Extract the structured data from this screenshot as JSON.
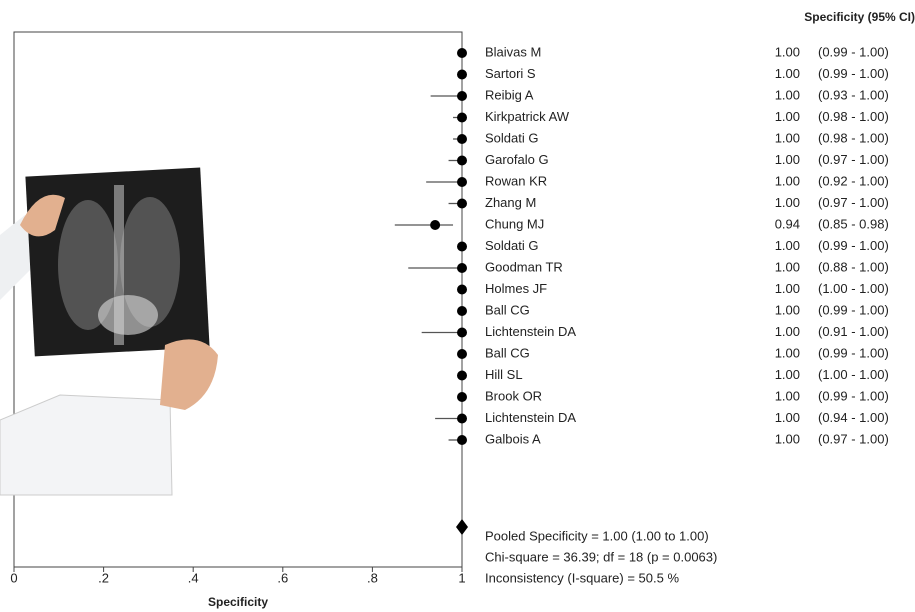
{
  "chart_data": {
    "type": "forest",
    "header": "Specificity (95% CI)",
    "xlabel": "Specificity",
    "color": "#000000",
    "studies": [
      "Blaivas M",
      "Sartori S",
      "Reibig A",
      "Kirkpatrick AW",
      "Soldati G",
      "Garofalo G",
      "Rowan KR",
      "Zhang M",
      "Chung MJ",
      "Soldati G",
      "Goodman TR",
      "Holmes JF",
      "Ball CG",
      "Lichtenstein DA",
      "Ball CG",
      "Hill SL",
      "Brook OR",
      "Lichtenstein DA",
      "Galbois A"
    ],
    "values": [
      1,
      1,
      1,
      1,
      1,
      1,
      1,
      1,
      0.94,
      1,
      1,
      1,
      1,
      1,
      1,
      1,
      1,
      1,
      1
    ],
    "value_labels": [
      "1.00",
      "1.00",
      "1.00",
      "1.00",
      "1.00",
      "1.00",
      "1.00",
      "1.00",
      "0.94",
      "1.00",
      "1.00",
      "1.00",
      "1.00",
      "1.00",
      "1.00",
      "1.00",
      "1.00",
      "1.00",
      "1.00"
    ],
    "ci_lower": [
      0.99,
      0.99,
      0.93,
      0.98,
      0.98,
      0.97,
      0.92,
      0.97,
      0.85,
      0.99,
      0.88,
      1,
      0.99,
      0.91,
      0.99,
      1,
      0.99,
      0.94,
      0.97
    ],
    "ci_upper": [
      1,
      1,
      1,
      1,
      1,
      1,
      1,
      1,
      0.98,
      1,
      1,
      1,
      1,
      1,
      1,
      1,
      1,
      1,
      1
    ],
    "ci_labels": [
      "(0.99 - 1.00)",
      "(0.99 - 1.00)",
      "(0.93 - 1.00)",
      "(0.98 - 1.00)",
      "(0.98 - 1.00)",
      "(0.97 - 1.00)",
      "(0.92 - 1.00)",
      "(0.97 - 1.00)",
      "(0.85 - 0.98)",
      "(0.99 - 1.00)",
      "(0.88 - 1.00)",
      "(1.00 - 1.00)",
      "(0.99 - 1.00)",
      "(0.91 - 1.00)",
      "(0.99 - 1.00)",
      "(1.00 - 1.00)",
      "(0.99 - 1.00)",
      "(0.94 - 1.00)",
      "(0.97 - 1.00)"
    ],
    "pooled": {
      "value": 1,
      "text": "Pooled Specificity = 1.00 (1.00 to 1.00)"
    },
    "stats": [
      "Chi-square = 36.39; df =  18 (p = 0.0063)",
      "Inconsistency (I-square) = 50.5 %"
    ],
    "xlim": [
      0,
      1
    ],
    "xticks": [
      0,
      {
        "value": 0.2,
        "label": ".2"
      },
      {
        "value": 0.4,
        "label": ".4"
      },
      {
        "value": 0.6,
        "label": ".6"
      },
      {
        "value": 0.8,
        "label": ".8"
      },
      1
    ]
  }
}
